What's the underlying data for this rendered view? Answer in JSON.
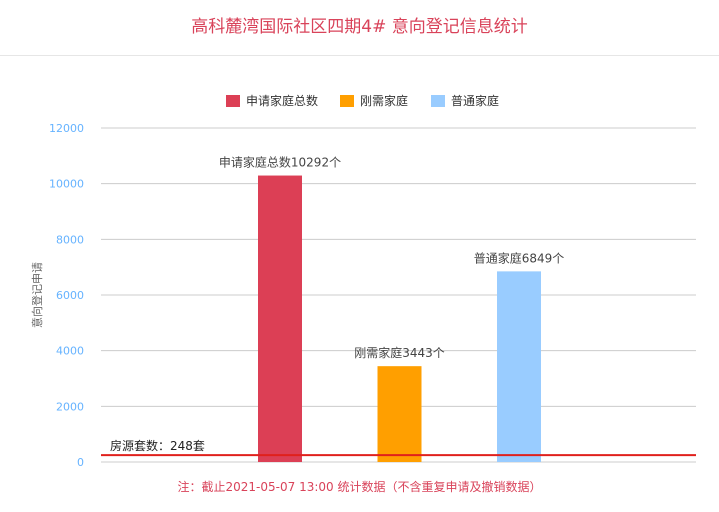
{
  "title": "高科麓湾国际社区四期4# 意向登记信息统计",
  "footnote": "注：截止2021-05-07 13:00 统计数据（不含重复申请及撤销数据）",
  "colors": {
    "title": "#d9435a",
    "applicants": "#dc3f55",
    "rigid": "#ff9f00",
    "ordinary": "#99ccff",
    "housing_line": "#e0201c",
    "tick_label": "#66b3ff"
  },
  "chart_data": {
    "type": "bar",
    "categories": [
      "申请家庭总数",
      "刚需家庭",
      "普通家庭"
    ],
    "series": [
      {
        "name": "申请家庭总数",
        "values": [
          10292,
          null,
          null
        ]
      },
      {
        "name": "刚需家庭",
        "values": [
          null,
          3443,
          null
        ]
      },
      {
        "name": "普通家庭",
        "values": [
          null,
          null,
          6849
        ]
      }
    ],
    "data_labels": [
      "申请家庭总数10292个",
      "刚需家庭3443个",
      "普通家庭6849个"
    ],
    "ylabel": "意向登记申请",
    "ylim": [
      0,
      12000
    ],
    "yticks": [
      0,
      2000,
      4000,
      6000,
      8000,
      10000,
      12000
    ],
    "grid": true,
    "legend": "top-center",
    "reference_line": {
      "value": 248,
      "label": "房源套数：248套"
    }
  }
}
